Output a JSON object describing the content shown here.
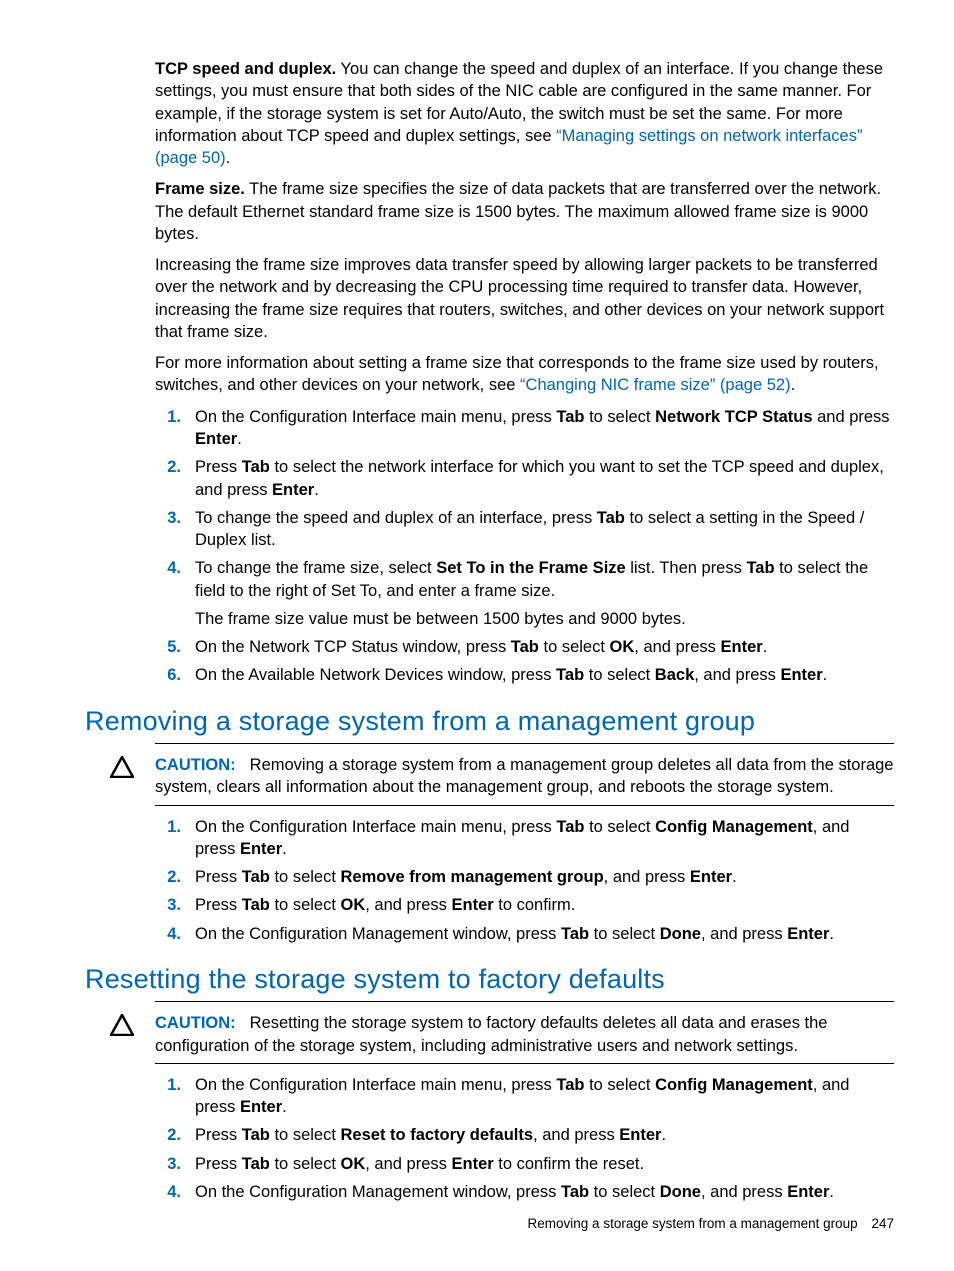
{
  "link_color": "#0066b3",
  "section_top": {
    "para_tcp": {
      "lead": "TCP speed and duplex.",
      "text": " You can change the speed and duplex of an interface. If you change these settings, you must ensure that both sides of the NIC cable are configured in the same manner. For example, if the storage system is set for Auto/Auto, the switch must be set the same. For more information about TCP speed and duplex settings, see ",
      "link": "“Managing settings on network interfaces” (page 50)",
      "tail": "."
    },
    "para_frame_lead": "Frame size.",
    "para_frame_text": " The frame size specifies the size of data packets that are transferred over the network. The default Ethernet standard frame size is 1500 bytes. The maximum allowed frame size is 9000 bytes.",
    "para_increase": "Increasing the frame size improves data transfer speed by allowing larger packets to be transferred over the network and by decreasing the CPU processing time required to transfer data. However, increasing the frame size requires that routers, switches, and other devices on your network support that frame size.",
    "para_more_pre": "For more information about setting a frame size that corresponds to the frame size used by routers, switches, and other devices on your network, see ",
    "para_more_link": "“Changing NIC frame size” (page 52)",
    "para_more_tail": ".",
    "steps": [
      {
        "n": "1.",
        "html": "On the Configuration Interface main menu, press <b>Tab</b> to select <b>Network TCP Status</b> and press <b>Enter</b>."
      },
      {
        "n": "2.",
        "html": "Press <b>Tab</b> to select the network interface for which you want to set the TCP speed and duplex, and press <b>Enter</b>."
      },
      {
        "n": "3.",
        "html": "To change the speed and duplex of an interface, press <b>Tab</b> to select a setting in the Speed / Duplex list."
      },
      {
        "n": "4.",
        "html": "To change the frame size, select <b>Set To in the Frame Size</b> list. Then press <b>Tab</b> to select the field to the right of Set To, and enter a frame size.",
        "extra": "The frame size value must be between 1500 bytes and 9000 bytes."
      },
      {
        "n": "5.",
        "html": "On the Network TCP Status window, press <b>Tab</b> to select <b>OK</b>, and press <b>Enter</b>."
      },
      {
        "n": "6.",
        "html": "On the Available Network Devices window, press <b>Tab</b> to select <b>Back</b>, and press <b>Enter</b>."
      }
    ]
  },
  "section_remove": {
    "title": "Removing a storage system from a management group",
    "caution_label": "CAUTION:",
    "caution_text": "Removing a storage system from a management group deletes all data from the storage system, clears all information about the management group, and reboots the storage system.",
    "steps": [
      {
        "n": "1.",
        "html": "On the Configuration Interface main menu, press <b>Tab</b> to select <b>Config Management</b>, and press <b>Enter</b>."
      },
      {
        "n": "2.",
        "html": "Press <b>Tab</b> to select <b>Remove from management group</b>, and press <b>Enter</b>."
      },
      {
        "n": "3.",
        "html": "Press <b>Tab</b> to select <b>OK</b>, and press <b>Enter</b> to confirm."
      },
      {
        "n": "4.",
        "html": "On the Configuration Management window, press <b>Tab</b> to select <b>Done</b>, and press <b>Enter</b>."
      }
    ]
  },
  "section_reset": {
    "title": "Resetting the storage system to factory defaults",
    "caution_label": "CAUTION:",
    "caution_text": "Resetting the storage system to factory defaults deletes all data and erases the configuration of the storage system, including administrative users and network settings.",
    "steps": [
      {
        "n": "1.",
        "html": "On the Configuration Interface main menu, press <b>Tab</b> to select <b>Config Management</b>, and press <b>Enter</b>."
      },
      {
        "n": "2.",
        "html": "Press <b>Tab</b> to select <b>Reset to factory defaults</b>, and press <b>Enter</b>."
      },
      {
        "n": "3.",
        "html": "Press <b>Tab</b> to select <b>OK</b>, and press <b>Enter</b> to confirm the reset."
      },
      {
        "n": "4.",
        "html": "On the Configuration Management window, press <b>Tab</b> to select <b>Done</b>, and press <b>Enter</b>."
      }
    ]
  },
  "footer": {
    "text": "Removing a storage system from a management group",
    "page": "247"
  }
}
